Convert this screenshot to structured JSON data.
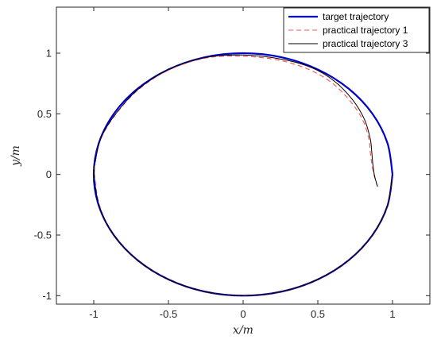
{
  "chart_data": {
    "type": "line",
    "title": "",
    "xlabel": "x/m",
    "ylabel": "y/m",
    "xlim": [
      -1.25,
      1.25
    ],
    "ylim": [
      -1.07,
      1.38
    ],
    "xticks": [
      -1,
      -0.5,
      0,
      0.5,
      1
    ],
    "xtick_labels": [
      "-1",
      "-0.5",
      "0",
      "0.5",
      "1"
    ],
    "yticks": [
      -1,
      -0.5,
      0,
      0.5,
      1
    ],
    "ytick_labels": [
      "-1",
      "-0.5",
      "0",
      "0.5",
      "1"
    ],
    "grid": false,
    "legend_position": "top-right",
    "series": [
      {
        "name": "target trajectory",
        "color": "#0000c8",
        "style": "solid",
        "description": "unit circle",
        "x": [
          1,
          0.966,
          0.866,
          0.707,
          0.5,
          0.259,
          0,
          -0.259,
          -0.5,
          -0.707,
          -0.866,
          -0.966,
          -1,
          -0.966,
          -0.866,
          -0.707,
          -0.5,
          -0.259,
          0,
          0.259,
          0.5,
          0.707,
          0.866,
          0.966,
          1
        ],
        "y": [
          0,
          0.259,
          0.5,
          0.707,
          0.866,
          0.966,
          1,
          0.966,
          0.866,
          0.707,
          0.5,
          0.259,
          0,
          -0.259,
          -0.5,
          -0.707,
          -0.866,
          -0.966,
          -1,
          -0.966,
          -0.866,
          -0.707,
          -0.5,
          -0.259,
          0
        ]
      },
      {
        "name": "practical trajectory 1",
        "color": "#ff5050",
        "style": "dashed",
        "x": [
          0.9,
          0.89,
          0.875,
          0.86,
          0.85,
          0.84,
          0.8,
          0.72,
          0.6,
          0.45,
          0.25,
          0,
          -0.25,
          -0.5,
          -0.7,
          -0.85,
          -0.95,
          -0.99,
          -0.995,
          -0.96,
          -0.866,
          -0.707,
          -0.5,
          -0.259,
          0,
          0.259,
          0.5,
          0.707,
          0.866,
          0.966,
          1
        ],
        "y": [
          -0.1,
          -0.06,
          0,
          0.1,
          0.2,
          0.3,
          0.45,
          0.6,
          0.75,
          0.86,
          0.94,
          0.975,
          0.96,
          0.86,
          0.7,
          0.5,
          0.3,
          0.1,
          0,
          -0.26,
          -0.5,
          -0.707,
          -0.866,
          -0.966,
          -1,
          -0.966,
          -0.866,
          -0.707,
          -0.5,
          -0.259,
          0
        ]
      },
      {
        "name": "practical trajectory 3",
        "color": "#000000",
        "style": "solid",
        "x": [
          0.9,
          0.89,
          0.878,
          0.867,
          0.86,
          0.85,
          0.81,
          0.73,
          0.61,
          0.46,
          0.26,
          0,
          -0.25,
          -0.5,
          -0.7,
          -0.85,
          -0.95,
          -0.99,
          -0.998,
          -0.963,
          -0.866,
          -0.707,
          -0.5,
          -0.259,
          0,
          0.259,
          0.5,
          0.707,
          0.866,
          0.966,
          1
        ],
        "y": [
          -0.1,
          -0.06,
          0,
          0.1,
          0.2,
          0.3,
          0.46,
          0.62,
          0.77,
          0.88,
          0.95,
          0.985,
          0.965,
          0.865,
          0.705,
          0.505,
          0.305,
          0.105,
          0,
          -0.26,
          -0.5,
          -0.707,
          -0.866,
          -0.966,
          -1,
          -0.966,
          -0.866,
          -0.707,
          -0.5,
          -0.259,
          0
        ]
      }
    ]
  }
}
